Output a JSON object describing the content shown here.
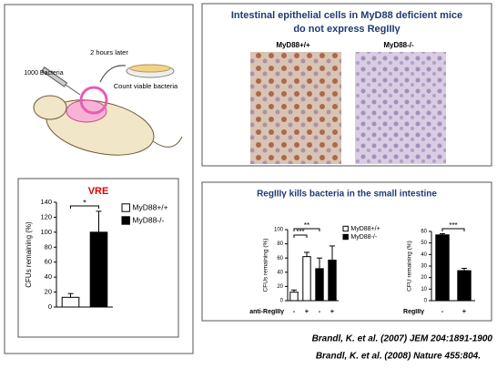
{
  "experiment": {
    "injection_label": "1000 Bacteria",
    "delay_label": "2 hours later",
    "count_label": "Count viable bacteria"
  },
  "histology": {
    "title_lines": [
      "Intestinal epithelial cells in MyD88 deficient mice",
      "do not express RegIIIγ"
    ],
    "images": [
      {
        "label": "MyD88+/+"
      },
      {
        "label": "MyD88-/-"
      }
    ]
  },
  "killing_panel": {
    "title": "RegIIIγ kills bacteria in the small intestine"
  },
  "references": [
    "Brandl, K. et al. (2007) JEM 204:1891-1900",
    "Brandl, K. et al. (2008) Nature  455:804."
  ],
  "chart_data": [
    {
      "type": "bar",
      "title": "VRE",
      "ylabel": "CFUs remaining (%)",
      "ylim": [
        0,
        140
      ],
      "yticks": [
        0,
        20,
        40,
        60,
        80,
        100,
        120,
        140
      ],
      "series": [
        {
          "name": "MyD88+/+",
          "color": "#ffffff",
          "values": [
            13
          ],
          "errors": [
            5
          ]
        },
        {
          "name": "MyD88-/-",
          "color": "#000000",
          "values": [
            100
          ],
          "errors": [
            28
          ]
        }
      ],
      "annotations": [
        "*"
      ]
    },
    {
      "type": "bar",
      "ylabel": "CFUs remaining (%)",
      "xlabel": "anti-RegIIIγ",
      "categories": [
        "-",
        "+",
        "-",
        "+"
      ],
      "ylim": [
        0,
        100
      ],
      "yticks": [
        0,
        20,
        40,
        60,
        80,
        100
      ],
      "series": [
        {
          "name": "MyD88+/+",
          "color": "#ffffff",
          "values": [
            12,
            62,
            null,
            null
          ],
          "errors": [
            3,
            6,
            null,
            null
          ]
        },
        {
          "name": "MyD88-/-",
          "color": "#000000",
          "values": [
            null,
            null,
            45,
            57
          ],
          "errors": [
            null,
            null,
            15,
            20
          ]
        }
      ],
      "annotations": [
        "***",
        "**"
      ]
    },
    {
      "type": "bar",
      "ylabel": "CFU remaining (%)",
      "xlabel": "RegIIIγ",
      "categories": [
        "-",
        "+"
      ],
      "ylim": [
        0,
        60
      ],
      "yticks": [
        0,
        10,
        20,
        30,
        40,
        50,
        60
      ],
      "series": [
        {
          "color": "#000000",
          "values": [
            57,
            26
          ],
          "errors": [
            1,
            2
          ]
        }
      ],
      "annotations": [
        "***"
      ]
    }
  ]
}
